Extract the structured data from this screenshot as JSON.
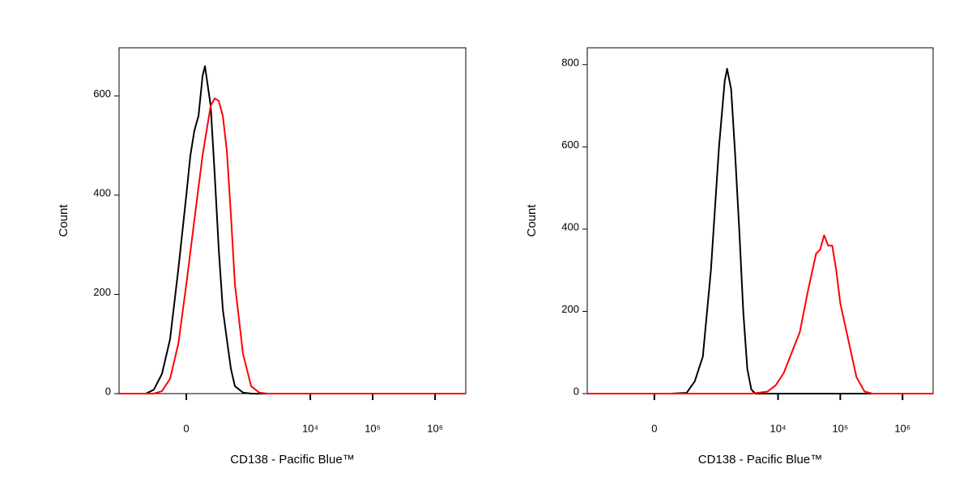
{
  "chart_data": [
    {
      "type": "line",
      "x_label": "CD138 - Pacific Blue™",
      "y_label": "Count",
      "x_scale": {
        "type": "arcsinh",
        "cofactor": 206
      },
      "xlim": [
        -1224,
        3100000
      ],
      "xticks": [
        0,
        {
          "value": 10000,
          "label": "10⁴"
        },
        {
          "value": 100000,
          "label": "10⁵"
        },
        {
          "value": 1000000,
          "label": "10⁶"
        }
      ],
      "ylim": [
        0,
        697
      ],
      "yticks": [
        0,
        200,
        400,
        600
      ],
      "series": [
        {
          "color": "#000000",
          "x": [
            -1224,
            -436,
            -310,
            -211,
            -131,
            -62,
            0,
            31,
            62,
            96,
            131,
            153,
            211,
            258,
            310,
            369,
            436,
            514,
            602,
            822,
            1117,
            3100000
          ],
          "values": [
            0,
            0,
            8,
            40,
            110,
            250,
            400,
            480,
            530,
            560,
            640,
            660,
            580,
            440,
            290,
            170,
            110,
            50,
            15,
            2,
            0,
            0
          ]
        },
        {
          "color": "#ff0000",
          "x": [
            -1224,
            -310,
            -211,
            -131,
            -62,
            0,
            62,
            131,
            211,
            258,
            310,
            369,
            436,
            514,
            602,
            822,
            1117,
            1512,
            2044,
            3100000
          ],
          "values": [
            0,
            0,
            5,
            30,
            100,
            220,
            350,
            480,
            580,
            595,
            590,
            560,
            490,
            360,
            220,
            80,
            15,
            2,
            0,
            0
          ]
        }
      ]
    },
    {
      "type": "line",
      "x_label": "CD138 - Pacific Blue™",
      "y_label": "Count",
      "x_scale": {
        "type": "arcsinh",
        "cofactor": 206
      },
      "xlim": [
        -1224,
        3100000
      ],
      "xticks": [
        0,
        {
          "value": 10000,
          "label": "10⁴"
        },
        {
          "value": 100000,
          "label": "10⁵"
        },
        {
          "value": 1000000,
          "label": "10⁶"
        }
      ],
      "ylim": [
        0,
        841
      ],
      "yticks": [
        0,
        200,
        400,
        600,
        800
      ],
      "series": [
        {
          "color": "#000000",
          "x": [
            -1224,
            131,
            310,
            436,
            602,
            822,
            1117,
            1382,
            1512,
            1759,
            2044,
            2375,
            2758,
            3205,
            3722,
            4325,
            3100000
          ],
          "values": [
            0,
            0,
            2,
            30,
            90,
            300,
            600,
            760,
            790,
            740,
            580,
            400,
            200,
            60,
            10,
            0,
            0
          ]
        },
        {
          "color": "#ff0000",
          "x": [
            -1224,
            3722,
            6777,
            9146,
            12320,
            16620,
            22410,
            30240,
            40790,
            47380,
            55000,
            63900,
            74160,
            86100,
            99900,
            134900,
            181900,
            245600,
            329600,
            3100000
          ],
          "values": [
            0,
            0,
            5,
            20,
            50,
            100,
            150,
            250,
            340,
            350,
            385,
            360,
            360,
            300,
            220,
            130,
            40,
            5,
            0,
            0
          ]
        }
      ]
    }
  ]
}
